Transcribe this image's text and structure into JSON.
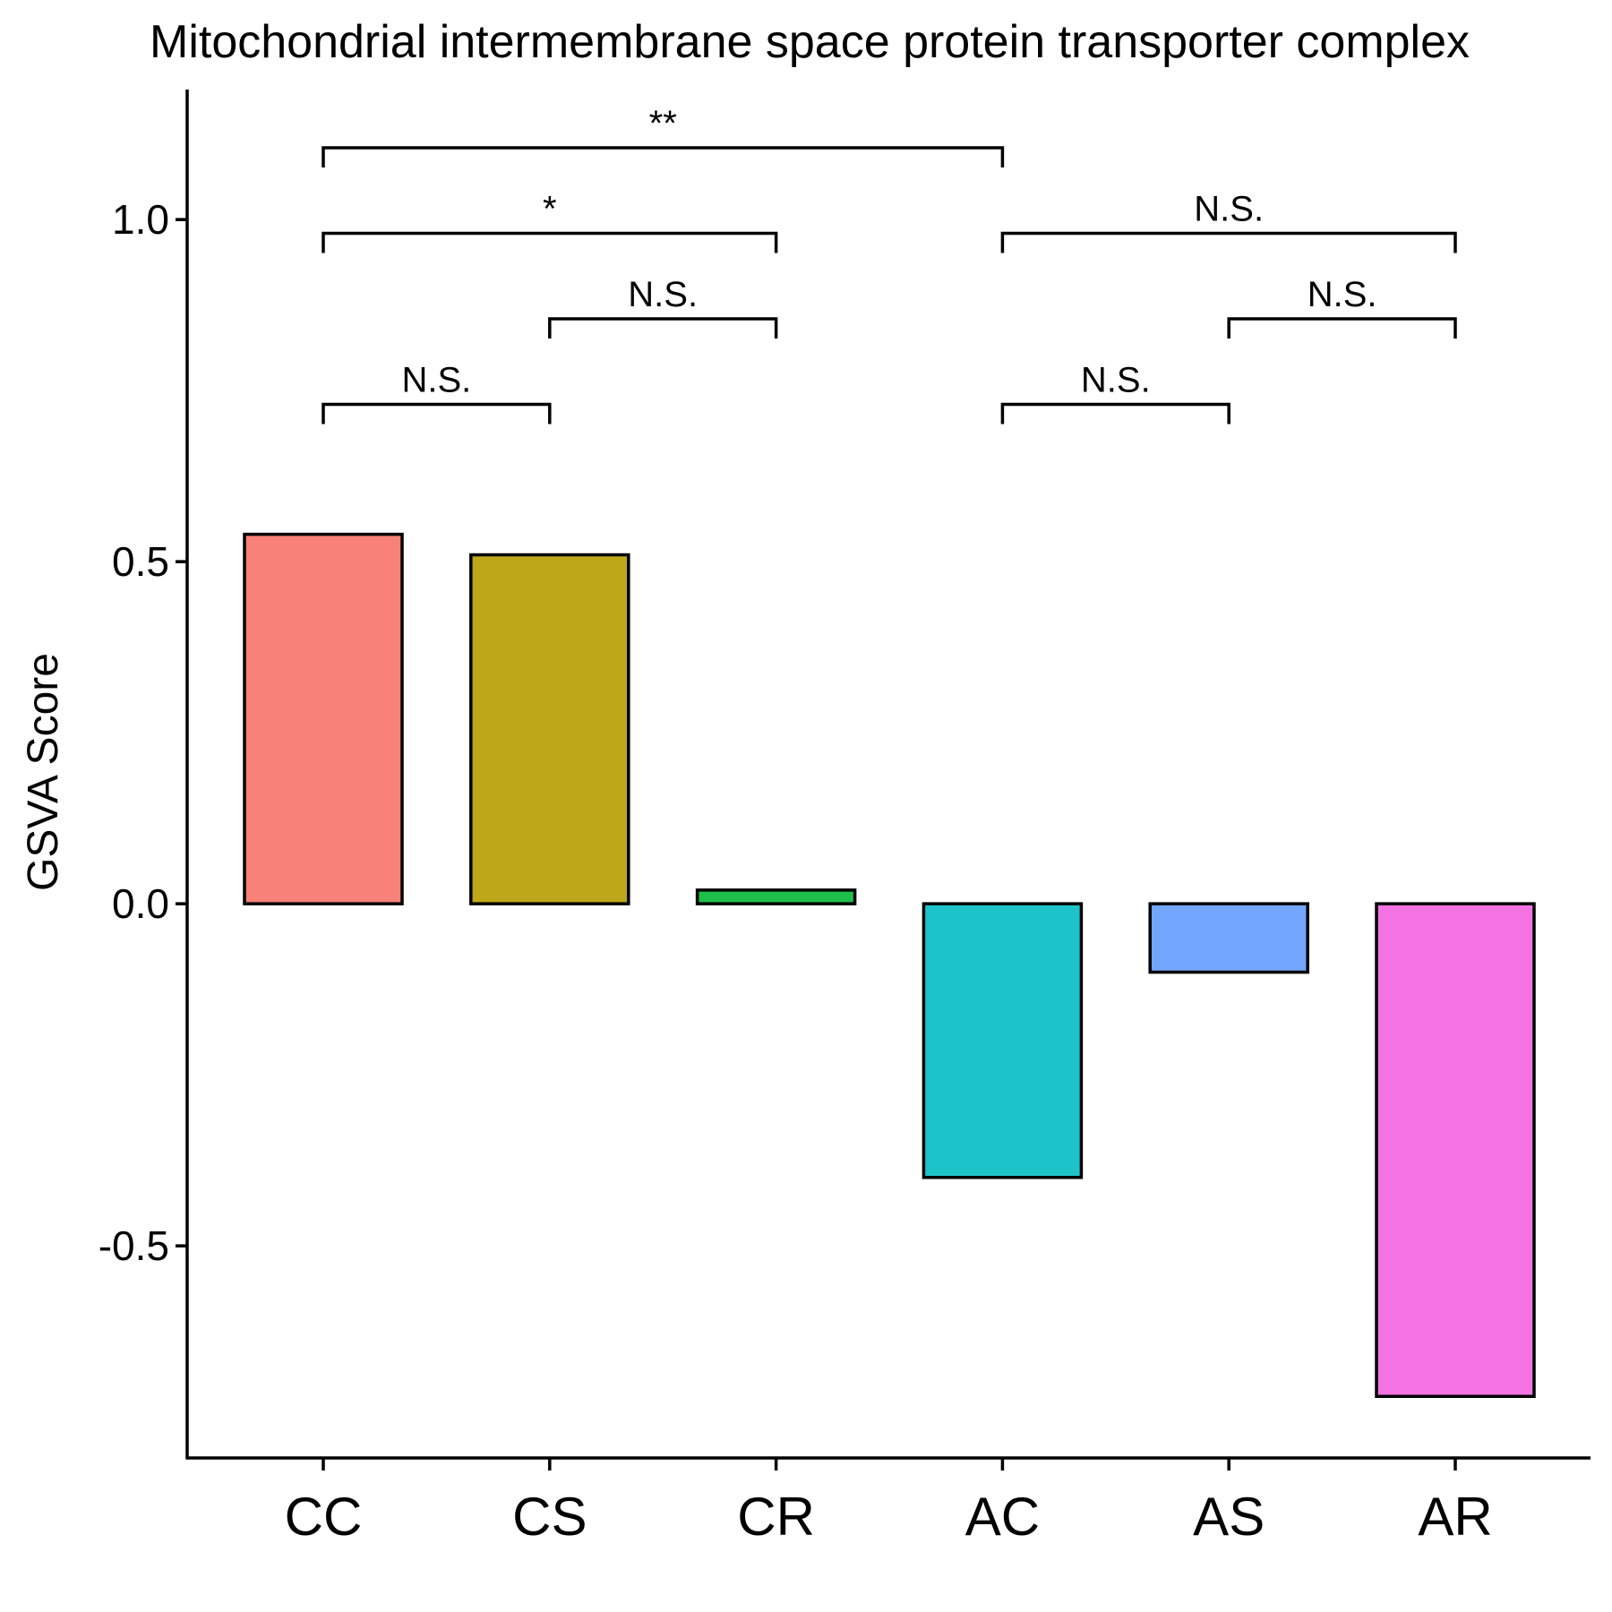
{
  "chart_data": {
    "type": "bar",
    "title": "Mitochondrial intermembrane space protein transporter complex",
    "xlabel": "",
    "ylabel": "GSVA Score",
    "categories": [
      "CC",
      "CS",
      "CR",
      "AC",
      "AS",
      "AR"
    ],
    "values": [
      0.54,
      0.51,
      0.02,
      -0.4,
      -0.1,
      -0.72
    ],
    "colors": [
      "#F8827A",
      "#BFA71A",
      "#1EBE4A",
      "#1CC4CA",
      "#73A6FF",
      "#F473E2"
    ],
    "yticks": [
      -0.5,
      0.0,
      0.5,
      1.0
    ],
    "ytick_labels": [
      "-0.5",
      "0.0",
      "0.5",
      "1.0"
    ],
    "ylim": [
      -0.81,
      1.19
    ],
    "grid": false,
    "legend": "none",
    "comparisons": [
      {
        "from": "CC",
        "to": "CS",
        "label": "N.S.",
        "y": 0.73
      },
      {
        "from": "CS",
        "to": "CR",
        "label": "N.S.",
        "y": 0.855
      },
      {
        "from": "CC",
        "to": "CR",
        "label": "*",
        "y": 0.98
      },
      {
        "from": "CC",
        "to": "AC",
        "label": "**",
        "y": 1.105
      },
      {
        "from": "AC",
        "to": "AS",
        "label": "N.S.",
        "y": 0.73
      },
      {
        "from": "AS",
        "to": "AR",
        "label": "N.S.",
        "y": 0.855
      },
      {
        "from": "AC",
        "to": "AR",
        "label": "N.S.",
        "y": 0.98
      }
    ]
  }
}
